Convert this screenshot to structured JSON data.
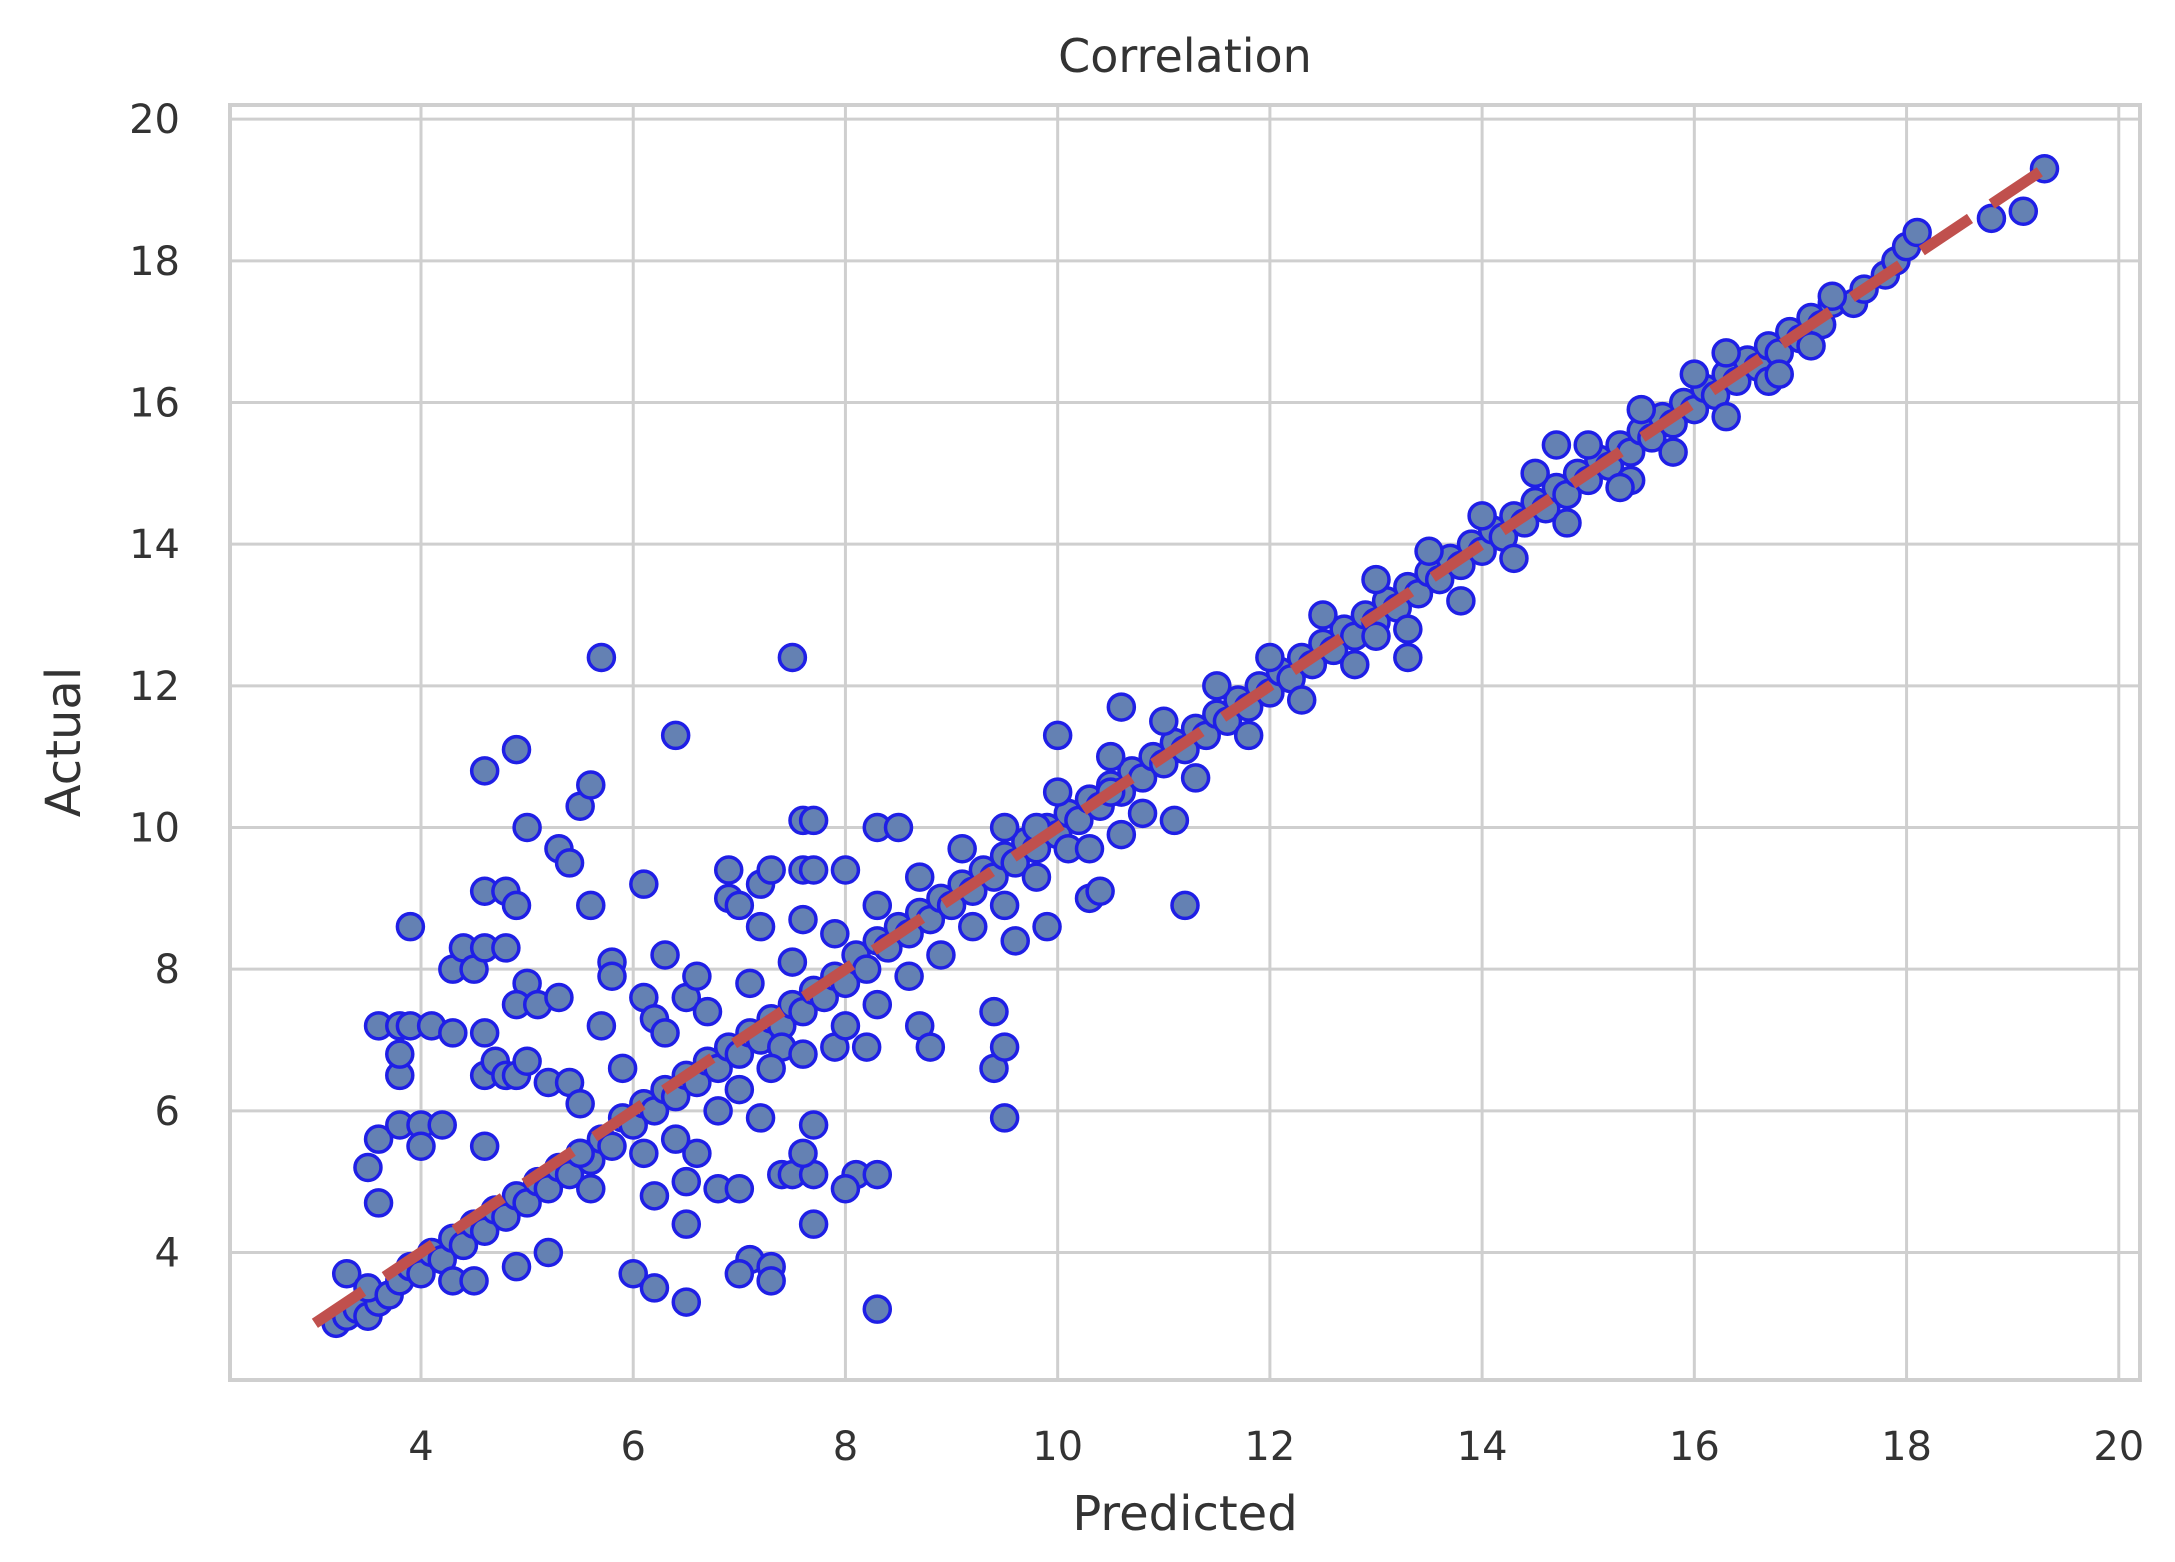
{
  "chart_data": {
    "type": "scatter",
    "title": "Correlation",
    "xlabel": "Predicted",
    "ylabel": "Actual",
    "xlim": [
      2.2,
      20.2
    ],
    "ylim": [
      2.2,
      20.2
    ],
    "xticks": [
      4,
      6,
      8,
      10,
      12,
      14,
      16,
      18,
      20
    ],
    "yticks": [
      4,
      6,
      8,
      10,
      12,
      14,
      16,
      18,
      20
    ],
    "grid": true,
    "marker_fill": "#6481b3",
    "marker_edge": "#1f1fe6",
    "reference_line": {
      "style": "dashed",
      "color": "#c0504d",
      "from": [
        3.0,
        3.0
      ],
      "to": [
        19.3,
        19.3
      ]
    },
    "points": [
      [
        3.2,
        3.0
      ],
      [
        3.3,
        3.1
      ],
      [
        3.4,
        3.2
      ],
      [
        3.5,
        3.1
      ],
      [
        3.6,
        3.3
      ],
      [
        3.3,
        3.7
      ],
      [
        3.5,
        3.5
      ],
      [
        3.7,
        3.4
      ],
      [
        3.8,
        3.6
      ],
      [
        3.9,
        3.8
      ],
      [
        4.0,
        3.7
      ],
      [
        4.1,
        4.0
      ],
      [
        4.2,
        3.9
      ],
      [
        4.3,
        4.2
      ],
      [
        4.4,
        4.1
      ],
      [
        4.5,
        4.4
      ],
      [
        4.6,
        4.3
      ],
      [
        4.7,
        4.6
      ],
      [
        4.8,
        4.5
      ],
      [
        4.9,
        4.8
      ],
      [
        5.0,
        4.7
      ],
      [
        5.1,
        5.0
      ],
      [
        5.2,
        4.9
      ],
      [
        5.3,
        5.2
      ],
      [
        5.4,
        5.1
      ],
      [
        5.5,
        5.4
      ],
      [
        5.6,
        5.3
      ],
      [
        5.7,
        5.6
      ],
      [
        5.8,
        5.5
      ],
      [
        5.9,
        5.9
      ],
      [
        6.0,
        5.8
      ],
      [
        6.1,
        6.1
      ],
      [
        6.2,
        6.0
      ],
      [
        6.3,
        6.3
      ],
      [
        6.4,
        6.2
      ],
      [
        6.5,
        6.5
      ],
      [
        6.6,
        6.4
      ],
      [
        6.7,
        6.7
      ],
      [
        6.8,
        6.6
      ],
      [
        6.9,
        6.9
      ],
      [
        7.0,
        6.8
      ],
      [
        7.1,
        7.1
      ],
      [
        7.2,
        7.0
      ],
      [
        7.3,
        7.3
      ],
      [
        7.4,
        7.2
      ],
      [
        7.5,
        7.5
      ],
      [
        7.6,
        7.4
      ],
      [
        7.7,
        7.7
      ],
      [
        7.8,
        7.6
      ],
      [
        7.9,
        7.9
      ],
      [
        8.0,
        7.8
      ],
      [
        8.1,
        8.2
      ],
      [
        8.2,
        8.0
      ],
      [
        8.3,
        8.4
      ],
      [
        8.4,
        8.3
      ],
      [
        8.5,
        8.6
      ],
      [
        8.6,
        8.5
      ],
      [
        8.7,
        8.8
      ],
      [
        8.8,
        8.7
      ],
      [
        8.9,
        9.0
      ],
      [
        9.0,
        8.9
      ],
      [
        9.1,
        9.2
      ],
      [
        9.2,
        9.1
      ],
      [
        9.3,
        9.4
      ],
      [
        9.4,
        9.3
      ],
      [
        9.5,
        9.6
      ],
      [
        9.6,
        9.5
      ],
      [
        9.7,
        9.8
      ],
      [
        9.8,
        9.7
      ],
      [
        9.9,
        10.0
      ],
      [
        10.0,
        9.9
      ],
      [
        10.1,
        10.2
      ],
      [
        10.2,
        10.1
      ],
      [
        10.3,
        10.4
      ],
      [
        10.4,
        10.3
      ],
      [
        10.5,
        10.6
      ],
      [
        10.6,
        10.5
      ],
      [
        10.7,
        10.8
      ],
      [
        10.8,
        10.7
      ],
      [
        10.9,
        11.0
      ],
      [
        11.0,
        10.9
      ],
      [
        11.1,
        11.2
      ],
      [
        11.2,
        11.1
      ],
      [
        11.3,
        11.4
      ],
      [
        11.4,
        11.3
      ],
      [
        11.5,
        11.6
      ],
      [
        11.6,
        11.5
      ],
      [
        11.7,
        11.8
      ],
      [
        11.8,
        11.7
      ],
      [
        11.9,
        12.0
      ],
      [
        12.0,
        11.9
      ],
      [
        12.1,
        12.2
      ],
      [
        12.2,
        12.1
      ],
      [
        12.3,
        12.4
      ],
      [
        12.4,
        12.3
      ],
      [
        12.5,
        12.6
      ],
      [
        12.6,
        12.5
      ],
      [
        12.7,
        12.8
      ],
      [
        12.8,
        12.7
      ],
      [
        12.9,
        13.0
      ],
      [
        13.0,
        12.9
      ],
      [
        13.1,
        13.2
      ],
      [
        13.2,
        13.1
      ],
      [
        13.3,
        13.4
      ],
      [
        13.4,
        13.3
      ],
      [
        13.5,
        13.6
      ],
      [
        13.6,
        13.5
      ],
      [
        13.7,
        13.8
      ],
      [
        13.8,
        13.7
      ],
      [
        13.9,
        14.0
      ],
      [
        14.0,
        13.9
      ],
      [
        14.1,
        14.2
      ],
      [
        14.2,
        14.1
      ],
      [
        14.3,
        14.4
      ],
      [
        14.4,
        14.3
      ],
      [
        14.5,
        14.6
      ],
      [
        14.6,
        14.5
      ],
      [
        14.7,
        14.8
      ],
      [
        14.8,
        14.7
      ],
      [
        14.9,
        15.0
      ],
      [
        15.0,
        14.9
      ],
      [
        15.1,
        15.2
      ],
      [
        15.2,
        15.1
      ],
      [
        15.3,
        15.4
      ],
      [
        15.4,
        15.3
      ],
      [
        15.5,
        15.6
      ],
      [
        15.6,
        15.5
      ],
      [
        15.7,
        15.8
      ],
      [
        15.8,
        15.7
      ],
      [
        15.9,
        16.0
      ],
      [
        16.0,
        15.9
      ],
      [
        16.1,
        16.2
      ],
      [
        16.2,
        16.1
      ],
      [
        16.3,
        16.4
      ],
      [
        16.4,
        16.3
      ],
      [
        16.5,
        16.6
      ],
      [
        16.6,
        16.5
      ],
      [
        16.7,
        16.8
      ],
      [
        16.8,
        16.7
      ],
      [
        16.9,
        17.0
      ],
      [
        17.0,
        16.9
      ],
      [
        17.1,
        17.2
      ],
      [
        17.2,
        17.1
      ],
      [
        17.3,
        17.4
      ],
      [
        17.5,
        17.4
      ],
      [
        17.6,
        17.6
      ],
      [
        17.8,
        17.8
      ],
      [
        17.9,
        18.0
      ],
      [
        18.0,
        18.2
      ],
      [
        18.1,
        18.4
      ],
      [
        18.8,
        18.6
      ],
      [
        19.1,
        18.7
      ],
      [
        19.3,
        19.3
      ],
      [
        3.6,
        7.2
      ],
      [
        3.8,
        7.2
      ],
      [
        3.9,
        7.2
      ],
      [
        4.1,
        7.2
      ],
      [
        4.3,
        7.1
      ],
      [
        3.8,
        6.5
      ],
      [
        3.8,
        6.8
      ],
      [
        3.9,
        8.6
      ],
      [
        3.6,
        5.6
      ],
      [
        3.8,
        5.8
      ],
      [
        4.0,
        5.8
      ],
      [
        4.2,
        5.8
      ],
      [
        4.0,
        5.5
      ],
      [
        3.5,
        5.2
      ],
      [
        3.6,
        4.7
      ],
      [
        4.3,
        8.0
      ],
      [
        4.4,
        8.3
      ],
      [
        4.5,
        8.0
      ],
      [
        4.6,
        9.1
      ],
      [
        4.8,
        9.1
      ],
      [
        4.9,
        8.9
      ],
      [
        4.6,
        10.8
      ],
      [
        4.9,
        11.1
      ],
      [
        5.0,
        10.0
      ],
      [
        4.6,
        8.3
      ],
      [
        4.8,
        8.3
      ],
      [
        5.0,
        7.8
      ],
      [
        4.9,
        7.5
      ],
      [
        5.1,
        7.5
      ],
      [
        5.3,
        7.6
      ],
      [
        5.3,
        9.7
      ],
      [
        5.4,
        9.5
      ],
      [
        5.5,
        10.3
      ],
      [
        5.6,
        10.6
      ],
      [
        5.6,
        8.9
      ],
      [
        5.7,
        7.2
      ],
      [
        5.8,
        8.1
      ],
      [
        5.8,
        7.9
      ],
      [
        5.7,
        12.4
      ],
      [
        7.5,
        12.4
      ],
      [
        6.4,
        11.3
      ],
      [
        6.1,
        9.2
      ],
      [
        4.6,
        7.1
      ],
      [
        4.6,
        6.5
      ],
      [
        4.7,
        6.7
      ],
      [
        4.8,
        6.5
      ],
      [
        4.9,
        6.5
      ],
      [
        5.0,
        6.7
      ],
      [
        5.2,
        6.4
      ],
      [
        5.4,
        6.4
      ],
      [
        4.6,
        5.5
      ],
      [
        5.5,
        5.4
      ],
      [
        6.3,
        8.2
      ],
      [
        6.1,
        7.6
      ],
      [
        6.2,
        7.3
      ],
      [
        6.5,
        7.6
      ],
      [
        6.6,
        7.9
      ],
      [
        6.9,
        9.0
      ],
      [
        6.9,
        9.4
      ],
      [
        7.0,
        8.9
      ],
      [
        7.2,
        9.2
      ],
      [
        7.3,
        9.4
      ],
      [
        7.6,
        9.4
      ],
      [
        7.7,
        9.4
      ],
      [
        8.0,
        9.4
      ],
      [
        7.6,
        10.1
      ],
      [
        7.7,
        10.1
      ],
      [
        8.3,
        10.0
      ],
      [
        8.5,
        10.0
      ],
      [
        7.6,
        8.7
      ],
      [
        7.2,
        8.6
      ],
      [
        8.7,
        7.2
      ],
      [
        8.8,
        6.9
      ],
      [
        8.2,
        6.9
      ],
      [
        7.9,
        6.9
      ],
      [
        7.4,
        6.9
      ],
      [
        6.5,
        4.4
      ],
      [
        6.8,
        4.9
      ],
      [
        7.0,
        4.9
      ],
      [
        7.4,
        5.1
      ],
      [
        7.5,
        5.1
      ],
      [
        7.7,
        5.1
      ],
      [
        8.1,
        5.1
      ],
      [
        8.3,
        5.1
      ],
      [
        7.7,
        4.4
      ],
      [
        8.0,
        4.9
      ],
      [
        7.6,
        5.4
      ],
      [
        7.7,
        5.8
      ],
      [
        7.1,
        3.9
      ],
      [
        7.3,
        3.8
      ],
      [
        7.0,
        3.7
      ],
      [
        7.3,
        3.6
      ],
      [
        6.0,
        3.7
      ],
      [
        6.2,
        3.5
      ],
      [
        6.5,
        3.3
      ],
      [
        8.3,
        3.2
      ],
      [
        6.2,
        4.8
      ],
      [
        6.5,
        5.0
      ],
      [
        6.6,
        5.4
      ],
      [
        7.2,
        5.9
      ],
      [
        9.4,
        6.6
      ],
      [
        9.5,
        6.9
      ],
      [
        9.5,
        5.9
      ],
      [
        9.4,
        7.4
      ],
      [
        9.6,
        8.4
      ],
      [
        9.9,
        8.6
      ],
      [
        10.3,
        9.0
      ],
      [
        10.4,
        9.1
      ],
      [
        11.2,
        8.9
      ],
      [
        11.1,
        10.1
      ],
      [
        10.0,
        11.3
      ],
      [
        10.6,
        11.7
      ],
      [
        10.5,
        10.5
      ],
      [
        9.8,
        10.0
      ],
      [
        10.1,
        9.7
      ],
      [
        10.6,
        9.9
      ],
      [
        13.3,
        12.4
      ],
      [
        13.0,
        12.7
      ],
      [
        14.7,
        15.4
      ],
      [
        15.4,
        14.9
      ],
      [
        16.7,
        16.3
      ],
      [
        16.3,
        16.7
      ],
      [
        17.1,
        16.8
      ],
      [
        17.3,
        17.5
      ],
      [
        4.9,
        3.8
      ],
      [
        4.3,
        3.6
      ],
      [
        4.5,
        3.6
      ],
      [
        5.2,
        4.0
      ],
      [
        5.6,
        4.9
      ],
      [
        6.1,
        5.4
      ],
      [
        6.4,
        5.6
      ],
      [
        6.8,
        6.0
      ],
      [
        7.0,
        6.3
      ],
      [
        7.3,
        6.6
      ],
      [
        7.6,
        6.8
      ],
      [
        8.0,
        7.2
      ],
      [
        8.3,
        7.5
      ],
      [
        8.6,
        7.9
      ],
      [
        8.9,
        8.2
      ],
      [
        9.2,
        8.6
      ],
      [
        9.5,
        8.9
      ],
      [
        9.8,
        9.3
      ],
      [
        10.3,
        9.7
      ],
      [
        10.8,
        10.2
      ],
      [
        11.3,
        10.7
      ],
      [
        11.8,
        11.3
      ],
      [
        12.3,
        11.8
      ],
      [
        12.8,
        12.3
      ],
      [
        13.3,
        12.8
      ],
      [
        13.8,
        13.2
      ],
      [
        14.3,
        13.8
      ],
      [
        14.8,
        14.3
      ],
      [
        15.3,
        14.8
      ],
      [
        15.8,
        15.3
      ],
      [
        16.3,
        15.8
      ],
      [
        16.8,
        16.4
      ],
      [
        5.5,
        6.1
      ],
      [
        5.9,
        6.6
      ],
      [
        6.3,
        7.1
      ],
      [
        6.7,
        7.4
      ],
      [
        7.1,
        7.8
      ],
      [
        7.5,
        8.1
      ],
      [
        7.9,
        8.5
      ],
      [
        8.3,
        8.9
      ],
      [
        8.7,
        9.3
      ],
      [
        9.1,
        9.7
      ],
      [
        9.5,
        10.0
      ],
      [
        10.0,
        10.5
      ],
      [
        10.5,
        11.0
      ],
      [
        11.0,
        11.5
      ],
      [
        11.5,
        12.0
      ],
      [
        12.0,
        12.4
      ],
      [
        12.5,
        13.0
      ],
      [
        13.0,
        13.5
      ],
      [
        13.5,
        13.9
      ],
      [
        14.0,
        14.4
      ],
      [
        14.5,
        15.0
      ],
      [
        15.0,
        15.4
      ],
      [
        15.5,
        15.9
      ],
      [
        16.0,
        16.4
      ]
    ]
  }
}
